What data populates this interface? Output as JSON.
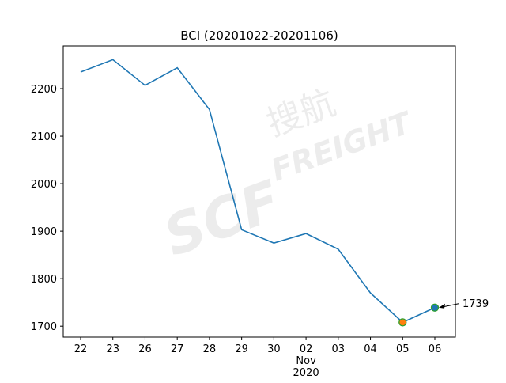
{
  "chart_data": {
    "type": "line",
    "title": "BCI (20201022-20201106)",
    "categories": [
      "22",
      "23",
      "26",
      "27",
      "28",
      "29",
      "30",
      "02\nNov\n2020",
      "03",
      "04",
      "05",
      "06"
    ],
    "series": [
      {
        "name": "BCI",
        "color": "#1f77b4",
        "values": [
          2235,
          2261,
          2207,
          2244,
          2156,
          1903,
          1875,
          1895,
          1862,
          1770,
          1708,
          1739
        ]
      }
    ],
    "markers": [
      {
        "index": 10,
        "value": 1708,
        "color": "#ff7f0e",
        "edge": "#2ca02c"
      },
      {
        "index": 11,
        "value": 1739,
        "color": "#1f77b4",
        "edge": "#2ca02c"
      }
    ],
    "annotation": 1739,
    "ylim": [
      1677,
      2290
    ],
    "yticks": [
      1700,
      1800,
      1900,
      2000,
      2100,
      2200
    ],
    "watermark": [
      "SCF",
      "搜航",
      "FREIGHT"
    ]
  }
}
